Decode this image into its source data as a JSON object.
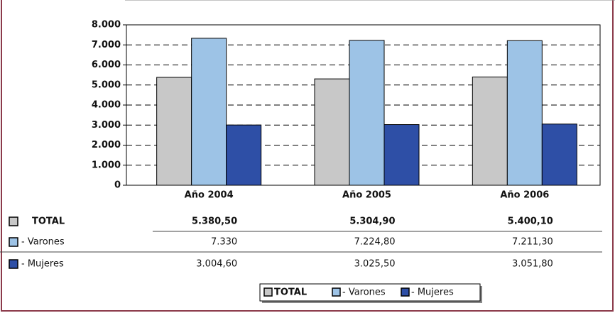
{
  "chart_data": {
    "type": "bar",
    "categories": [
      "Año 2004",
      "Año 2005",
      "Año 2006"
    ],
    "series": [
      {
        "name": "TOTAL",
        "color": "#c8c8c8",
        "values": [
          5380.5,
          5304.9,
          5400.1
        ],
        "value_labels": [
          "5.380,50",
          "5.304,90",
          "5.400,10"
        ]
      },
      {
        "name": "- Varones",
        "color": "#9dc3e6",
        "values": [
          7330,
          7224.8,
          7211.3
        ],
        "value_labels": [
          "7.330",
          "7.224,80",
          "7.211,30"
        ]
      },
      {
        "name": "- Mujeres",
        "color": "#2e4fa6",
        "values": [
          3004.6,
          3025.5,
          3051.8
        ],
        "value_labels": [
          "3.004,60",
          "3.025,50",
          "3.051,80"
        ]
      }
    ],
    "ylim": [
      0,
      8000
    ],
    "yticks": [
      0,
      {
        "value": 1000,
        "label": "1.000"
      },
      {
        "value": 2000,
        "label": "2.000"
      },
      {
        "value": 3000,
        "label": "3.000"
      },
      {
        "value": 4000,
        "label": "4.000"
      },
      {
        "value": 5000,
        "label": "5.000"
      },
      {
        "value": 6000,
        "label": "6.000"
      },
      {
        "value": 7000,
        "label": "7.000"
      },
      {
        "value": 8000,
        "label": "8.000"
      }
    ],
    "grid": true
  }
}
